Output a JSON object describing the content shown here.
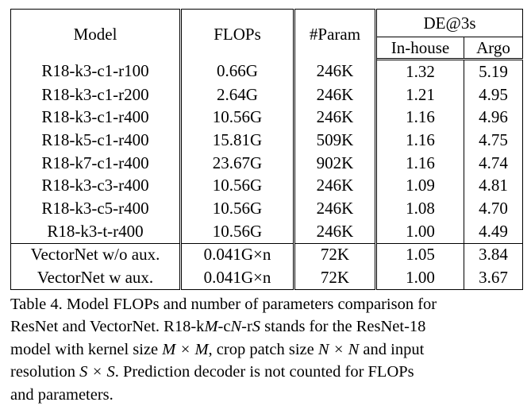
{
  "table": {
    "headers": {
      "model": "Model",
      "flops": "FLOPs",
      "param": "#Param",
      "de": "DE@3s",
      "inhouse": "In-house",
      "argo": "Argo"
    },
    "rows": [
      {
        "model": "R18-k3-c1-r100",
        "flops": "0.66G",
        "param": "246K",
        "inhouse": "1.32",
        "argo": "5.19"
      },
      {
        "model": "R18-k3-c1-r200",
        "flops": "2.64G",
        "param": "246K",
        "inhouse": "1.21",
        "argo": "4.95"
      },
      {
        "model": "R18-k3-c1-r400",
        "flops": "10.56G",
        "param": "246K",
        "inhouse": "1.16",
        "argo": "4.96"
      },
      {
        "model": "R18-k5-c1-r400",
        "flops": "15.81G",
        "param": "509K",
        "inhouse": "1.16",
        "argo": "4.75"
      },
      {
        "model": "R18-k7-c1-r400",
        "flops": "23.67G",
        "param": "902K",
        "inhouse": "1.16",
        "argo": "4.74"
      },
      {
        "model": "R18-k3-c3-r400",
        "flops": "10.56G",
        "param": "246K",
        "inhouse": "1.09",
        "argo": "4.81"
      },
      {
        "model": "R18-k3-c5-r400",
        "flops": "10.56G",
        "param": "246K",
        "inhouse": "1.08",
        "argo": "4.70"
      },
      {
        "model": "R18-k3-t-r400",
        "flops": "10.56G",
        "param": "246K",
        "inhouse": "1.00",
        "argo": "4.49"
      }
    ],
    "vector_rows": [
      {
        "model": "VectorNet w/o aux.",
        "flops": "0.041G×n",
        "param": "72K",
        "inhouse": "1.05",
        "argo": "3.84"
      },
      {
        "model": "VectorNet w aux.",
        "flops": "0.041G×n",
        "param": "72K",
        "inhouse": "1.00",
        "argo": "3.67"
      }
    ]
  },
  "caption": {
    "line1": "Table 4. Model FLOPs and number of parameters comparison for",
    "line2_a": "ResNet and VectorNet. R18-k",
    "line2_m": "M",
    "line2_b": "-c",
    "line2_n": "N",
    "line2_c": "-r",
    "line2_s": "S",
    "line2_d": " stands for the ResNet-18",
    "line3_a": "model with kernel size ",
    "line3_mxm": "M × M",
    "line3_b": ", crop patch size ",
    "line3_nxn": "N × N",
    "line3_c": " and input",
    "line4_a": "resolution ",
    "line4_sxs": "S × S",
    "line4_b": ".  Prediction decoder is not counted for FLOPs",
    "line5": "and parameters."
  }
}
